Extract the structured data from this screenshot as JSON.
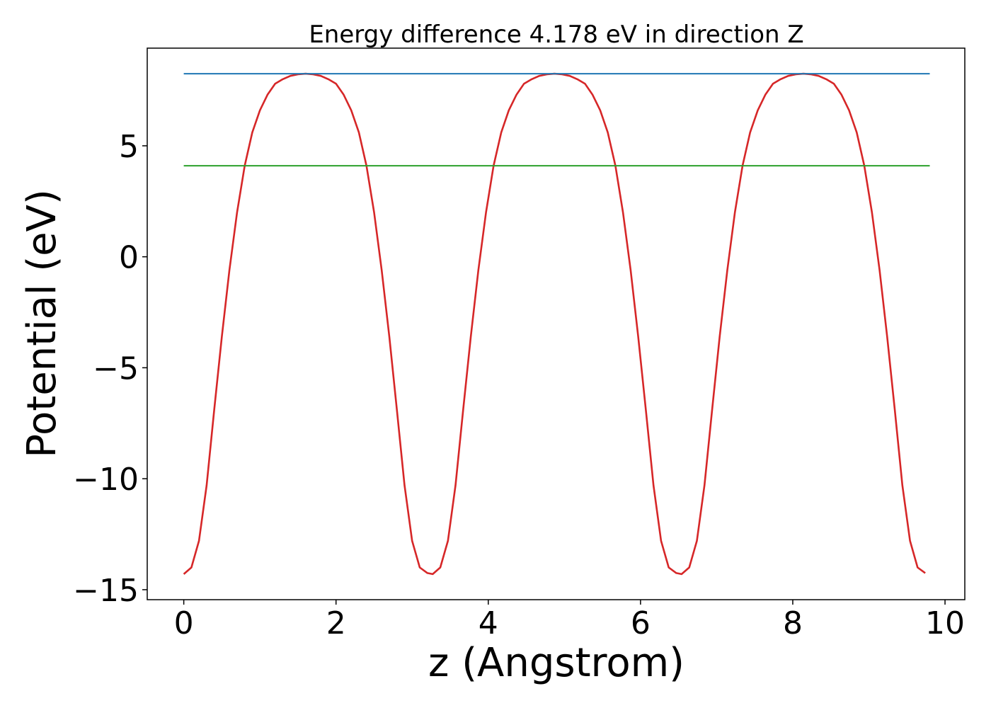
{
  "chart_data": {
    "type": "line",
    "title": "Energy difference 4.178 eV in direction Z",
    "xlabel": "z (Angstrom)",
    "ylabel": "Potential (eV)",
    "xlim": [
      -0.48,
      10.26
    ],
    "ylim": [
      -15.45,
      9.4
    ],
    "xticks": [
      0,
      2,
      4,
      6,
      8,
      10
    ],
    "xtick_labels": [
      "0",
      "2",
      "4",
      "6",
      "8",
      "10"
    ],
    "yticks": [
      -15,
      -10,
      -5,
      0,
      5
    ],
    "ytick_labels": [
      "−15",
      "−10",
      "−5",
      "0",
      "5"
    ],
    "grid": false,
    "series": [
      {
        "color": "#d62728",
        "period": 3.27,
        "x": [
          0,
          0.1,
          0.2,
          0.3,
          0.4,
          0.5,
          0.6,
          0.7,
          0.8,
          0.9,
          1.0,
          1.1,
          1.2,
          1.3,
          1.4,
          1.5,
          1.6,
          1.7,
          1.8,
          1.9,
          2.0,
          2.1,
          2.2,
          2.3,
          2.4,
          2.5,
          2.6,
          2.7,
          2.8,
          2.9,
          3.0,
          3.1,
          3.2,
          3.27
        ],
        "y": [
          -14.3,
          -14.0,
          -12.8,
          -10.3,
          -6.9,
          -3.6,
          -0.6,
          2.0,
          4.1,
          5.6,
          6.6,
          7.3,
          7.8,
          8.0,
          8.15,
          8.22,
          8.25,
          8.22,
          8.15,
          8.0,
          7.8,
          7.3,
          6.6,
          5.6,
          4.1,
          2.0,
          -0.6,
          -3.6,
          -6.9,
          -10.3,
          -12.8,
          -14.0,
          -14.25,
          -14.3
        ],
        "x_end": 9.8
      },
      {
        "color": "#1f77b4",
        "x": [
          0,
          9.8
        ],
        "y": [
          8.25,
          8.25
        ]
      },
      {
        "color": "#2ca02c",
        "x": [
          0,
          9.8
        ],
        "y": [
          4.1,
          4.1
        ]
      }
    ]
  }
}
